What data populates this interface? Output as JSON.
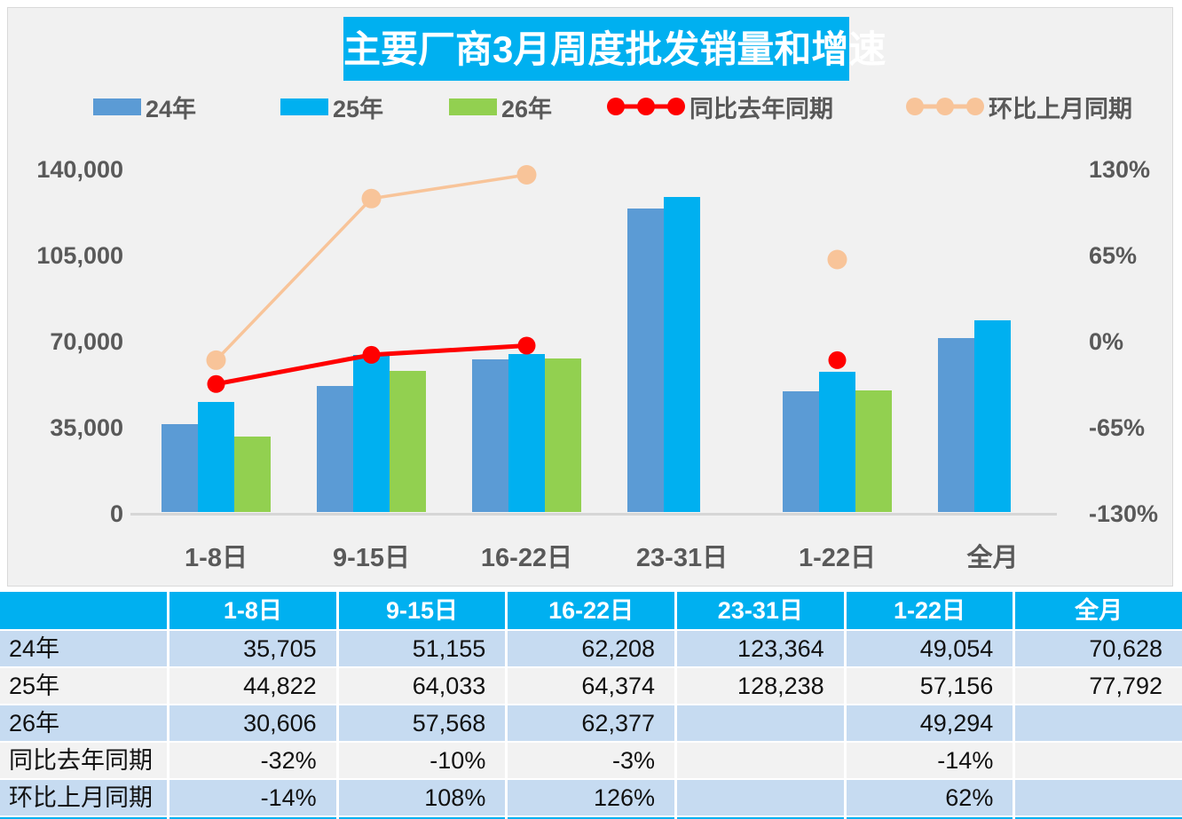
{
  "title": "主要厂商3月周度批发销量和增速",
  "legend": [
    {
      "label": "24年",
      "type": "bar",
      "color_key": "blue"
    },
    {
      "label": "25年",
      "type": "bar",
      "color_key": "sky"
    },
    {
      "label": "26年",
      "type": "bar",
      "color_key": "green"
    },
    {
      "label": "同比去年同期",
      "type": "line",
      "color_key": "red"
    },
    {
      "label": "环比上月同期",
      "type": "line",
      "color_key": "peach"
    }
  ],
  "chart_data": {
    "type": "combo-bar-line",
    "categories": [
      "1-8日",
      "9-15日",
      "16-22日",
      "23-31日",
      "1-22日",
      "全月"
    ],
    "bar_series": [
      {
        "name": "24年",
        "color_key": "blue",
        "values": [
          35705,
          51155,
          62208,
          123364,
          49054,
          70628
        ]
      },
      {
        "name": "25年",
        "color_key": "sky",
        "values": [
          44822,
          64033,
          64374,
          128238,
          57156,
          77792
        ]
      },
      {
        "name": "26年",
        "color_key": "green",
        "values": [
          30606,
          57568,
          62377,
          null,
          49294,
          null
        ]
      }
    ],
    "line_series": [
      {
        "name": "同比去年同期",
        "color_key": "red",
        "stroke_width": 5,
        "marker_r": 10,
        "values_pct": [
          -32,
          -10,
          -3,
          null,
          -14,
          null
        ]
      },
      {
        "name": "环比上月同期",
        "color_key": "peach",
        "stroke_width": 3.5,
        "marker_r": 11,
        "values_pct": [
          -14,
          108,
          126,
          null,
          62,
          null
        ]
      }
    ],
    "left_axis": {
      "ticks": [
        "140,000",
        "105,000",
        "70,000",
        "35,000",
        "0"
      ],
      "min": 0,
      "max": 140000
    },
    "right_axis": {
      "ticks": [
        "130%",
        "65%",
        "0%",
        "-65%",
        "-130%"
      ],
      "min": -130,
      "max": 130
    },
    "grid": false,
    "legend_position": "top"
  },
  "table": {
    "header": [
      "",
      "1-8日",
      "9-15日",
      "16-22日",
      "23-31日",
      "1-22日",
      "全月"
    ],
    "rows": [
      {
        "label": "24年",
        "band": "a",
        "cells": [
          "35,705",
          "51,155",
          "62,208",
          "123,364",
          "49,054",
          "70,628"
        ]
      },
      {
        "label": "25年",
        "band": "b",
        "cells": [
          "44,822",
          "64,033",
          "64,374",
          "128,238",
          "57,156",
          "77,792"
        ]
      },
      {
        "label": "26年",
        "band": "a",
        "cells": [
          "30,606",
          "57,568",
          "62,377",
          "",
          "49,294",
          ""
        ]
      },
      {
        "label": "同比去年同期",
        "band": "b",
        "cells": [
          "-32%",
          "-10%",
          "-3%",
          "",
          "-14%",
          ""
        ]
      },
      {
        "label": "环比上月同期",
        "band": "a",
        "cells": [
          "-14%",
          "108%",
          "126%",
          "",
          "62%",
          ""
        ]
      }
    ]
  },
  "colors": {
    "blue": "#5B9BD5",
    "sky": "#00B0F0",
    "green": "#92D050",
    "red": "#FF0000",
    "peach": "#F8C499",
    "panel_bg": "#F1F1F1",
    "axis_text": "#595959",
    "row_blue": "#C6DBF1",
    "row_gray": "#F2F2F2",
    "title_text": "#FFFFFF"
  }
}
